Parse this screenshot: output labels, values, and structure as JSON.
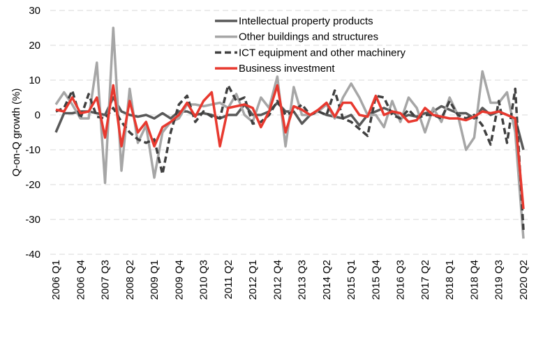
{
  "chart_data": {
    "type": "line",
    "y_label": "Q-on-Q growth  (%)",
    "categories": [
      "2006 Q1",
      null,
      null,
      "2006 Q4",
      null,
      null,
      "2007 Q3",
      null,
      null,
      "2008 Q2",
      null,
      null,
      "2009 Q1",
      null,
      null,
      "2009 Q4",
      null,
      null,
      "2010 Q3",
      null,
      null,
      "2011 Q2",
      null,
      null,
      "2012 Q1",
      null,
      null,
      "2012 Q4",
      null,
      null,
      "2013 Q3",
      null,
      null,
      "2014 Q2",
      null,
      null,
      "2015 Q1",
      null,
      null,
      "2015 Q4",
      null,
      null,
      "2016 Q3",
      null,
      null,
      "2017 Q2",
      null,
      null,
      "2018 Q1",
      null,
      null,
      "2018 Q4",
      null,
      null,
      "2019 Q3",
      null,
      null,
      "2020 Q2"
    ],
    "ylim": [
      -40,
      30
    ],
    "yticks": [
      -40,
      -30,
      -20,
      -10,
      0,
      10,
      20,
      30
    ],
    "grid": true,
    "legend": "top",
    "series": [
      {
        "name": "Intellectual property products",
        "color": "#595959",
        "style": "solid",
        "values": [
          -5,
          0.5,
          0.5,
          1,
          1,
          0.5,
          0,
          5,
          1,
          0,
          -0.5,
          0,
          -1,
          0.5,
          -1,
          1,
          1,
          0,
          0.5,
          0,
          -1,
          0,
          0,
          3,
          0,
          0,
          1,
          3.5,
          1,
          1,
          -2.5,
          0,
          1,
          0,
          -0.5,
          -1,
          0,
          -3,
          0,
          1,
          2,
          1,
          -1,
          0,
          -0.5,
          0.5,
          1,
          2.5,
          1.5,
          0.5,
          0.5,
          -1,
          2,
          0,
          1,
          0,
          -1,
          -10
        ]
      },
      {
        "name": "Other buildings and structures",
        "color": "#a6a6a6",
        "style": "solid",
        "values": [
          3,
          6.5,
          3,
          -1,
          -1,
          15,
          -19.5,
          25,
          -16,
          7.5,
          -8,
          -3,
          -18,
          -5,
          -2,
          -1,
          3,
          3,
          2.5,
          3,
          3.5,
          2,
          6,
          0,
          -2,
          5,
          2,
          11,
          -9,
          8,
          0,
          0,
          1,
          3,
          -1,
          5,
          9,
          5,
          0,
          0,
          -3.5,
          4,
          -2,
          5,
          2,
          -5,
          2,
          -2,
          5,
          0,
          -10,
          -6.5,
          12.5,
          3.5,
          3.5,
          6.5,
          -5,
          -35.5
        ]
      },
      {
        "name": "ICT equipment and other machinery",
        "color": "#404040",
        "style": "dashed",
        "values": [
          1,
          2,
          7,
          -1,
          6,
          -0.5,
          -1,
          2,
          -2,
          -5,
          -7,
          -8,
          -7,
          -17,
          -5,
          3,
          5.5,
          -2,
          1,
          -0.5,
          -1,
          8.5,
          4,
          5,
          -2.5,
          -2,
          0,
          4,
          0,
          1,
          3,
          0,
          1,
          0,
          7,
          -1,
          -2,
          -4,
          -6,
          5.5,
          5,
          0,
          -1,
          1.5,
          -1,
          0,
          0,
          -1,
          4,
          0,
          -1,
          0,
          -3,
          -8.5,
          4,
          -8,
          7.5,
          -33
        ]
      },
      {
        "name": "Business investment",
        "color": "#e8392f",
        "style": "solid",
        "values": [
          1.5,
          1,
          5,
          0.5,
          1,
          5,
          -6.5,
          8.5,
          -9,
          4,
          -5,
          -2,
          -9,
          -3.5,
          -2,
          0,
          3.5,
          -0.5,
          4,
          6.5,
          -9,
          2,
          2.5,
          3,
          2,
          -3.5,
          1,
          8.5,
          -5,
          2.5,
          1.5,
          0,
          1.5,
          3.5,
          -0.5,
          3.5,
          3.5,
          0,
          -0.5,
          5.5,
          0,
          1,
          0.5,
          -2,
          -1.5,
          2,
          0,
          -0.5,
          -1,
          -1,
          -1.5,
          -0.5,
          1,
          0.5,
          1,
          0,
          -1,
          -27
        ]
      }
    ]
  }
}
